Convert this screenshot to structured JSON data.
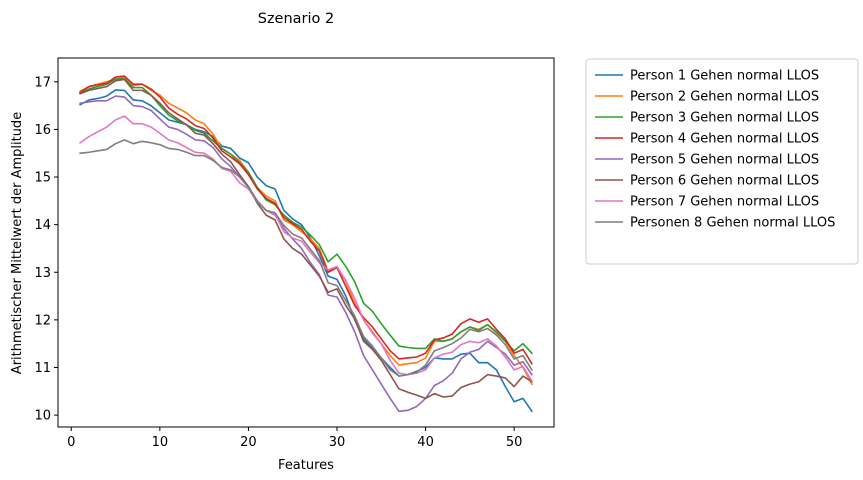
{
  "chart_data": {
    "type": "line",
    "title": "Szenario  2",
    "xlabel": "Features",
    "ylabel": "Arithmetischer Mittelwert der Amplitude",
    "xlim": [
      -1.5,
      54.5
    ],
    "ylim": [
      9.75,
      17.5
    ],
    "xticks": [
      0,
      10,
      20,
      30,
      40,
      50
    ],
    "yticks": [
      10,
      11,
      12,
      13,
      14,
      15,
      16,
      17
    ],
    "grid": false,
    "legend_position": "outside-right",
    "x": [
      1,
      2,
      3,
      4,
      5,
      6,
      7,
      8,
      9,
      10,
      11,
      12,
      13,
      14,
      15,
      16,
      17,
      18,
      19,
      20,
      21,
      22,
      23,
      24,
      25,
      26,
      27,
      28,
      29,
      30,
      31,
      32,
      33,
      34,
      35,
      36,
      37,
      38,
      39,
      40,
      41,
      42,
      43,
      44,
      45,
      46,
      47,
      48,
      49,
      50,
      51,
      52
    ],
    "series": [
      {
        "name": "Person 1 Gehen normal LLOS",
        "color": "#1f77b4",
        "values": [
          16.52,
          16.62,
          16.65,
          16.7,
          16.83,
          16.82,
          16.62,
          16.6,
          16.5,
          16.35,
          16.2,
          16.15,
          16.1,
          16.0,
          15.95,
          15.85,
          15.65,
          15.6,
          15.4,
          15.3,
          15.0,
          14.82,
          14.75,
          14.3,
          14.12,
          14.0,
          13.72,
          13.35,
          12.92,
          12.85,
          12.5,
          12.0,
          11.6,
          11.4,
          11.2,
          11.0,
          10.82,
          10.85,
          10.92,
          11.0,
          11.2,
          11.18,
          11.18,
          11.28,
          11.3,
          11.1,
          11.1,
          10.95,
          10.6,
          10.28,
          10.35,
          10.08
        ]
      },
      {
        "name": "Person 2 Gehen normal LLOS",
        "color": "#ff7f0e",
        "values": [
          16.8,
          16.9,
          16.95,
          17.0,
          17.05,
          17.1,
          16.92,
          16.95,
          16.82,
          16.72,
          16.55,
          16.45,
          16.35,
          16.2,
          16.12,
          15.9,
          15.6,
          15.48,
          15.35,
          15.1,
          14.78,
          14.6,
          14.5,
          14.1,
          14.0,
          13.85,
          13.7,
          13.5,
          13.02,
          13.12,
          12.8,
          12.35,
          12.0,
          11.75,
          11.5,
          11.25,
          11.05,
          11.08,
          11.1,
          11.2,
          11.55,
          11.55,
          11.6,
          11.75,
          11.85,
          11.8,
          11.9,
          11.72,
          11.55,
          11.25,
          11.0,
          10.65
        ]
      },
      {
        "name": "Person 3 Gehen normal LLOS",
        "color": "#2ca02c",
        "values": [
          16.76,
          16.85,
          16.9,
          16.95,
          17.06,
          17.06,
          16.88,
          16.88,
          16.72,
          16.5,
          16.3,
          16.18,
          16.1,
          15.98,
          15.92,
          15.76,
          15.6,
          15.48,
          15.3,
          15.1,
          14.78,
          14.52,
          14.42,
          14.2,
          14.05,
          13.95,
          13.78,
          13.58,
          13.22,
          13.38,
          13.12,
          12.8,
          12.35,
          12.18,
          11.92,
          11.68,
          11.45,
          11.42,
          11.4,
          11.4,
          11.6,
          11.55,
          11.6,
          11.75,
          11.85,
          11.78,
          11.9,
          11.75,
          11.55,
          11.35,
          11.5,
          11.3
        ]
      },
      {
        "name": "Person 4 Gehen normal LLOS",
        "color": "#d62728",
        "values": [
          16.78,
          16.9,
          16.94,
          16.97,
          17.1,
          17.12,
          16.95,
          16.95,
          16.85,
          16.68,
          16.45,
          16.32,
          16.22,
          16.08,
          16.02,
          15.82,
          15.55,
          15.42,
          15.28,
          15.05,
          14.75,
          14.55,
          14.45,
          14.15,
          14.02,
          13.9,
          13.65,
          13.45,
          13.0,
          13.1,
          12.7,
          12.3,
          12.05,
          11.85,
          11.6,
          11.35,
          11.18,
          11.2,
          11.22,
          11.3,
          11.58,
          11.62,
          11.7,
          11.92,
          12.02,
          11.95,
          12.02,
          11.8,
          11.6,
          11.3,
          11.38,
          11.08
        ]
      },
      {
        "name": "Person 5 Gehen normal LLOS",
        "color": "#9467bd",
        "values": [
          16.55,
          16.58,
          16.6,
          16.6,
          16.7,
          16.68,
          16.5,
          16.48,
          16.4,
          16.22,
          16.05,
          16.0,
          15.9,
          15.78,
          15.76,
          15.62,
          15.38,
          15.22,
          15.0,
          14.8,
          14.5,
          14.3,
          14.2,
          13.92,
          13.7,
          13.5,
          13.2,
          12.95,
          12.52,
          12.48,
          12.15,
          11.75,
          11.25,
          10.95,
          10.65,
          10.35,
          10.08,
          10.1,
          10.18,
          10.35,
          10.62,
          10.72,
          10.88,
          11.18,
          11.32,
          11.38,
          11.55,
          11.42,
          11.28,
          11.05,
          11.12,
          10.85
        ]
      },
      {
        "name": "Person 6 Gehen normal LLOS",
        "color": "#8c564b",
        "values": [
          16.75,
          16.82,
          16.86,
          16.9,
          17.02,
          17.05,
          16.82,
          16.82,
          16.72,
          16.55,
          16.35,
          16.22,
          16.1,
          15.92,
          15.88,
          15.7,
          15.48,
          15.32,
          15.05,
          14.8,
          14.45,
          14.2,
          14.1,
          13.7,
          13.5,
          13.38,
          13.15,
          12.92,
          12.58,
          12.65,
          12.3,
          12.02,
          11.55,
          11.38,
          11.15,
          10.85,
          10.55,
          10.48,
          10.42,
          10.35,
          10.45,
          10.38,
          10.4,
          10.58,
          10.65,
          10.7,
          10.85,
          10.82,
          10.78,
          10.6,
          10.82,
          10.7
        ]
      },
      {
        "name": "Person 7 Gehen normal LLOS",
        "color": "#e377c2",
        "values": [
          15.72,
          15.85,
          15.95,
          16.05,
          16.2,
          16.28,
          16.12,
          16.12,
          16.05,
          15.92,
          15.78,
          15.72,
          15.62,
          15.52,
          15.5,
          15.38,
          15.18,
          15.12,
          14.88,
          14.75,
          14.48,
          14.3,
          14.22,
          13.85,
          13.72,
          13.65,
          13.42,
          13.2,
          13.05,
          13.12,
          12.82,
          12.45,
          12.0,
          11.72,
          11.5,
          11.15,
          10.88,
          10.85,
          10.88,
          10.95,
          11.2,
          11.28,
          11.32,
          11.48,
          11.55,
          11.52,
          11.6,
          11.45,
          11.22,
          10.95,
          11.02,
          10.72
        ]
      },
      {
        "name": "Personen 8 Gehen normal LLOS",
        "color": "#7f7f7f",
        "values": [
          15.5,
          15.52,
          15.55,
          15.58,
          15.7,
          15.78,
          15.7,
          15.75,
          15.72,
          15.68,
          15.6,
          15.58,
          15.52,
          15.45,
          15.45,
          15.35,
          15.2,
          15.15,
          15.0,
          14.78,
          14.48,
          14.3,
          14.25,
          13.98,
          13.8,
          13.72,
          13.48,
          13.25,
          12.78,
          12.72,
          12.4,
          12.08,
          11.65,
          11.45,
          11.2,
          10.95,
          10.82,
          10.85,
          10.9,
          11.05,
          11.35,
          11.42,
          11.5,
          11.62,
          11.8,
          11.75,
          11.82,
          11.68,
          11.48,
          11.18,
          11.25,
          10.95
        ]
      }
    ]
  }
}
